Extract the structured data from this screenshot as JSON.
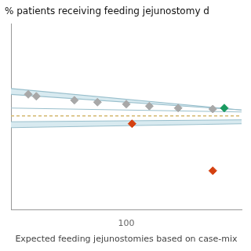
{
  "chart_data": {
    "type": "scatter",
    "title": "% patients receiving feeding jejunostomy d",
    "xlabel": "Expected feeding jejunostomies based on case-mix",
    "xlim": [
      0,
      200
    ],
    "ylim": [
      -15,
      80
    ],
    "xticks": [
      100
    ],
    "yticks": [],
    "tick_labels": "x",
    "grid": false,
    "series": [
      {
        "type": "band",
        "color": "#d8eaf0",
        "x": [
          0,
          200
        ],
        "lower": [
          44,
          36
        ],
        "values": [
          47,
          36
        ]
      },
      {
        "type": "band",
        "color": "#d8eaf0",
        "x": [
          0,
          200
        ],
        "lower": [
          27,
          29
        ],
        "values": [
          30,
          31
        ]
      },
      {
        "type": "line",
        "color": "#99bfcc",
        "line_style": "solid",
        "x": [
          0,
          200
        ],
        "values": [
          47,
          36
        ]
      },
      {
        "type": "line",
        "color": "#99bfcc",
        "line_style": "solid",
        "x": [
          0,
          200
        ],
        "values": [
          44,
          36
        ]
      },
      {
        "type": "line",
        "color": "#99bfcc",
        "line_style": "solid",
        "x": [
          0,
          200
        ],
        "values": [
          37,
          35
        ]
      },
      {
        "type": "line",
        "color": "#99bfcc",
        "line_style": "solid",
        "x": [
          0,
          200
        ],
        "values": [
          30,
          31
        ]
      },
      {
        "type": "line",
        "color": "#99bfcc",
        "line_style": "solid",
        "x": [
          0,
          200
        ],
        "values": [
          27,
          29
        ]
      },
      {
        "type": "line",
        "color": "#d4b870",
        "line_style": "dashed",
        "x": [
          0,
          200
        ],
        "values": [
          33,
          33
        ]
      },
      {
        "type": "scatter",
        "color": "#a8a8a8",
        "marker": "diamond",
        "x": [
          15,
          22,
          55,
          75,
          100,
          120,
          145,
          175
        ],
        "values": [
          44,
          43,
          41,
          40,
          39,
          38,
          37,
          36.5
        ]
      },
      {
        "type": "scatter",
        "color": "#d44010",
        "marker": "diamond",
        "x": [
          105,
          175
        ],
        "values": [
          29,
          5
        ]
      },
      {
        "type": "scatter",
        "color": "#1a9a60",
        "marker": "diamond",
        "x": [
          185
        ],
        "values": [
          37
        ]
      }
    ]
  }
}
